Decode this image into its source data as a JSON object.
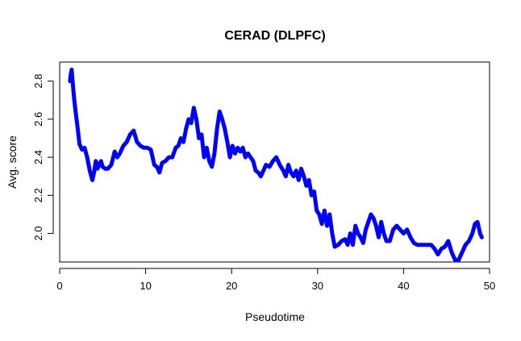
{
  "chart_data": {
    "type": "line",
    "title": "CERAD (DLPFC)",
    "xlabel": "Pseudotime",
    "ylabel": "Avg. score",
    "xlim": [
      0,
      50
    ],
    "ylim": [
      1.85,
      2.9
    ],
    "xticks": [
      "0",
      "10",
      "20",
      "30",
      "40",
      "50"
    ],
    "yticks": [
      "2.0",
      "2.2",
      "2.4",
      "2.6",
      "2.8"
    ],
    "grid": false,
    "legend": "none",
    "series": [
      {
        "color": "#0000ff",
        "x": [
          1.2,
          1.3,
          1.4,
          1.5,
          1.7,
          1.9,
          2.1,
          2.3,
          2.6,
          2.9,
          3.2,
          3.5,
          3.8,
          4.0,
          4.2,
          4.4,
          4.6,
          4.8,
          5.0,
          5.3,
          5.6,
          6.0,
          6.4,
          6.7,
          7.0,
          7.4,
          7.8,
          8.2,
          8.6,
          9.0,
          9.4,
          9.8,
          10.2,
          10.6,
          11.0,
          11.3,
          11.6,
          11.9,
          12.3,
          12.7,
          13.1,
          13.5,
          13.8,
          14.1,
          14.4,
          14.7,
          15.0,
          15.3,
          15.6,
          15.9,
          16.2,
          16.5,
          16.8,
          17.1,
          17.4,
          17.7,
          18.0,
          18.3,
          18.6,
          18.9,
          19.2,
          19.5,
          19.8,
          20.1,
          20.4,
          20.7,
          21.0,
          21.3,
          21.6,
          21.9,
          22.2,
          22.5,
          22.8,
          23.1,
          23.4,
          23.7,
          24.0,
          24.4,
          24.8,
          25.2,
          25.6,
          26.0,
          26.3,
          26.6,
          26.9,
          27.2,
          27.5,
          27.8,
          28.1,
          28.4,
          28.7,
          29.0,
          29.3,
          29.6,
          29.9,
          30.2,
          30.5,
          30.8,
          31.1,
          31.4,
          31.7,
          32.0,
          32.4,
          32.8,
          33.2,
          33.5,
          33.8,
          34.1,
          34.4,
          34.7,
          35.0,
          35.3,
          35.6,
          35.9,
          36.2,
          36.5,
          36.8,
          37.1,
          37.4,
          37.7,
          38.0,
          38.4,
          38.8,
          39.2,
          39.6,
          40.0,
          40.4,
          40.8,
          41.2,
          41.6,
          42.0,
          42.4,
          42.8,
          43.2,
          43.6,
          44.0,
          44.4,
          44.8,
          45.2,
          45.6,
          46.0,
          46.4,
          46.8,
          47.2,
          47.6,
          48.0,
          48.3,
          48.6,
          48.9,
          49.1
        ],
        "y": [
          2.8,
          2.84,
          2.86,
          2.8,
          2.7,
          2.62,
          2.55,
          2.47,
          2.44,
          2.45,
          2.4,
          2.33,
          2.28,
          2.32,
          2.38,
          2.34,
          2.36,
          2.38,
          2.35,
          2.34,
          2.34,
          2.36,
          2.43,
          2.4,
          2.42,
          2.46,
          2.48,
          2.52,
          2.54,
          2.48,
          2.46,
          2.45,
          2.45,
          2.44,
          2.36,
          2.35,
          2.32,
          2.37,
          2.38,
          2.4,
          2.4,
          2.45,
          2.46,
          2.5,
          2.48,
          2.55,
          2.6,
          2.58,
          2.66,
          2.6,
          2.5,
          2.52,
          2.4,
          2.45,
          2.38,
          2.35,
          2.42,
          2.55,
          2.64,
          2.6,
          2.55,
          2.48,
          2.4,
          2.46,
          2.42,
          2.45,
          2.43,
          2.45,
          2.4,
          2.42,
          2.4,
          2.38,
          2.33,
          2.32,
          2.3,
          2.33,
          2.36,
          2.35,
          2.38,
          2.4,
          2.36,
          2.33,
          2.3,
          2.36,
          2.32,
          2.3,
          2.33,
          2.28,
          2.34,
          2.3,
          2.25,
          2.28,
          2.2,
          2.22,
          2.12,
          2.1,
          2.05,
          2.12,
          2.04,
          2.1,
          2.0,
          1.93,
          1.94,
          1.96,
          1.97,
          1.94,
          2.0,
          1.94,
          2.04,
          2.0,
          1.98,
          1.95,
          2.02,
          2.06,
          2.1,
          2.08,
          2.04,
          1.98,
          2.06,
          2.0,
          1.96,
          1.96,
          2.02,
          2.04,
          2.02,
          2.0,
          2.02,
          1.98,
          1.95,
          1.94,
          1.94,
          1.94,
          1.94,
          1.94,
          1.92,
          1.89,
          1.92,
          1.93,
          1.96,
          1.9,
          1.86,
          1.86,
          1.9,
          1.94,
          1.96,
          2.0,
          2.05,
          2.06,
          2.0,
          1.98
        ]
      }
    ]
  }
}
